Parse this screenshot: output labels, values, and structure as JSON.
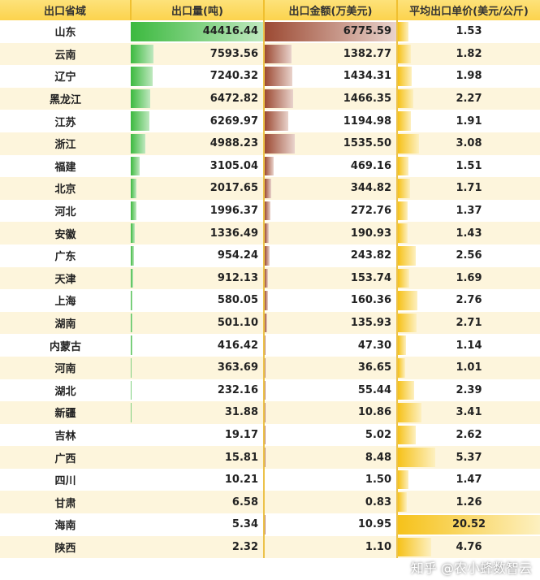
{
  "headers": [
    "出口省域",
    "出口量(吨)",
    "出口金额(万美元)",
    "平均出口单价(美元/公斤)"
  ],
  "colors": {
    "volume_bar": "#3cb93f",
    "amount_bar": "#9c4a33",
    "price_bar": "#f6c21a",
    "header": "#fcd34d"
  },
  "rows": [
    [
      "山东",
      "44416.44",
      "6775.59",
      "1.53"
    ],
    [
      "云南",
      "7593.56",
      "1382.77",
      "1.82"
    ],
    [
      "辽宁",
      "7240.32",
      "1434.31",
      "1.98"
    ],
    [
      "黑龙江",
      "6472.82",
      "1466.35",
      "2.27"
    ],
    [
      "江苏",
      "6269.97",
      "1194.98",
      "1.91"
    ],
    [
      "浙江",
      "4988.23",
      "1535.50",
      "3.08"
    ],
    [
      "福建",
      "3105.04",
      "469.16",
      "1.51"
    ],
    [
      "北京",
      "2017.65",
      "344.82",
      "1.71"
    ],
    [
      "河北",
      "1996.37",
      "272.76",
      "1.37"
    ],
    [
      "安徽",
      "1336.49",
      "190.93",
      "1.43"
    ],
    [
      "广东",
      "954.24",
      "243.82",
      "2.56"
    ],
    [
      "天津",
      "912.13",
      "153.74",
      "1.69"
    ],
    [
      "上海",
      "580.05",
      "160.36",
      "2.76"
    ],
    [
      "湖南",
      "501.10",
      "135.93",
      "2.71"
    ],
    [
      "内蒙古",
      "416.42",
      "47.30",
      "1.14"
    ],
    [
      "河南",
      "363.69",
      "36.65",
      "1.01"
    ],
    [
      "湖北",
      "232.16",
      "55.44",
      "2.39"
    ],
    [
      "新疆",
      "31.88",
      "10.86",
      "3.41"
    ],
    [
      "吉林",
      "19.17",
      "5.02",
      "2.62"
    ],
    [
      "广西",
      "15.81",
      "8.48",
      "5.37"
    ],
    [
      "四川",
      "10.21",
      "1.50",
      "1.47"
    ],
    [
      "甘肃",
      "6.58",
      "0.83",
      "1.26"
    ],
    [
      "海南",
      "5.34",
      "10.95",
      "20.52"
    ],
    [
      "陕西",
      "2.32",
      "1.10",
      "4.76"
    ]
  ],
  "watermark": "知乎 @农小蜂数智云"
}
